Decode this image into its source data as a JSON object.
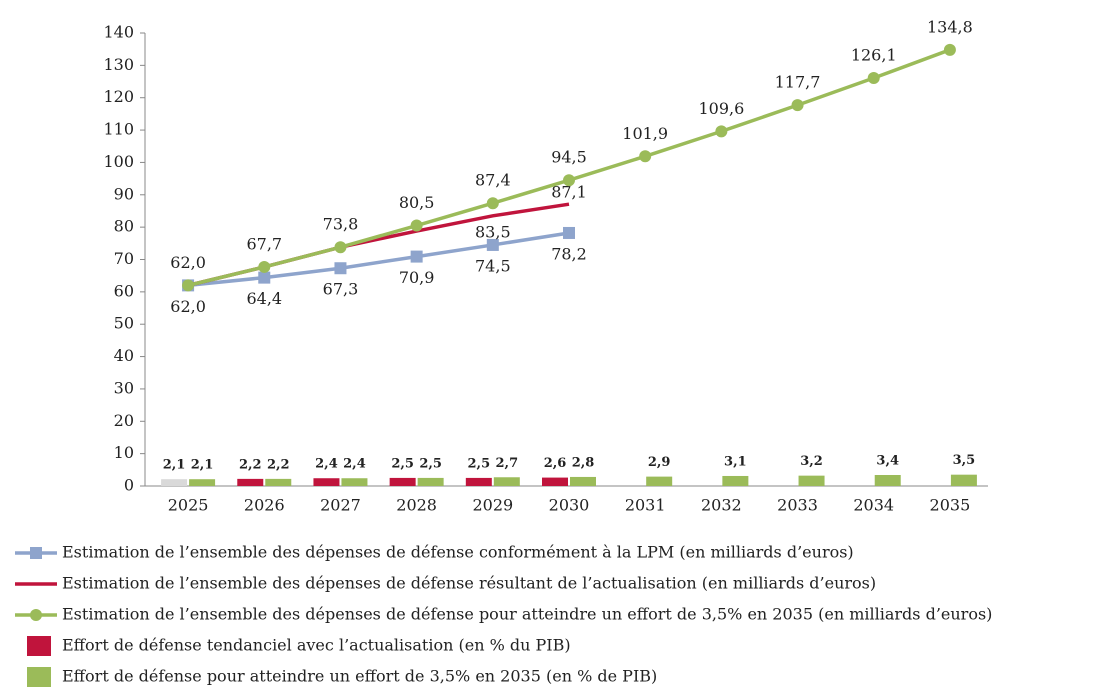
{
  "chart_data": {
    "type": "combo",
    "categories": [
      "2025",
      "2026",
      "2027",
      "2028",
      "2029",
      "2030",
      "2031",
      "2032",
      "2033",
      "2034",
      "2035"
    ],
    "ylim": [
      0,
      140
    ],
    "yticks": [
      0,
      10,
      20,
      30,
      40,
      50,
      60,
      70,
      80,
      90,
      100,
      110,
      120,
      130,
      140
    ],
    "series": [
      {
        "name": "Estimation de l’ensemble des dépenses de défense conformément à la LPM (en milliards d’euros)",
        "kind": "line",
        "marker": "square",
        "color": "#8ea4cc",
        "values": [
          62.0,
          64.4,
          67.3,
          70.9,
          74.5,
          78.2,
          null,
          null,
          null,
          null,
          null
        ],
        "value_labels": [
          "62,0",
          "64,4",
          "67,3",
          "70,9",
          "74,5",
          "78,2",
          null,
          null,
          null,
          null,
          null
        ]
      },
      {
        "name": "Estimation de l’ensemble des dépenses de défense résultant de l’actualisation (en milliards d’euros)",
        "kind": "line",
        "marker": "none",
        "color": "#c0143c",
        "values": [
          62.0,
          67.7,
          73.8,
          78.8,
          83.5,
          87.1,
          null,
          null,
          null,
          null,
          null
        ],
        "value_labels": [
          null,
          null,
          null,
          null,
          "83,5",
          "87,1",
          null,
          null,
          null,
          null,
          null
        ]
      },
      {
        "name": "Estimation de l’ensemble des dépenses de défense pour atteindre un effort de 3,5% en 2035 (en milliards d’euros)",
        "kind": "line",
        "marker": "circle",
        "color": "#9bbb59",
        "values": [
          62.0,
          67.7,
          73.8,
          80.5,
          87.4,
          94.5,
          101.9,
          109.6,
          117.7,
          126.1,
          134.8
        ],
        "value_labels": [
          "62,0",
          "67,7",
          "73,8",
          "80,5",
          "87,4",
          "94,5",
          "101,9",
          "109,6",
          "117,7",
          "126,1",
          "134,8"
        ]
      },
      {
        "name": "Effort de défense tendanciel avec l’actualisation (en % du PIB)",
        "kind": "bar",
        "color": "#c0143c",
        "colors": [
          "#d9d9d9",
          "#c0143c",
          "#c0143c",
          "#c0143c",
          "#c0143c",
          "#c0143c",
          null,
          null,
          null,
          null,
          null
        ],
        "values": [
          2.1,
          2.2,
          2.4,
          2.5,
          2.5,
          2.6,
          null,
          null,
          null,
          null,
          null
        ],
        "value_labels": [
          "2,1",
          "2,2",
          "2,4",
          "2,5",
          "2,5",
          "2,6",
          null,
          null,
          null,
          null,
          null
        ]
      },
      {
        "name": "Effort de défense pour atteindre un effort de 3,5% en 2035 (en % de PIB)",
        "kind": "bar",
        "color": "#9bbb59",
        "values": [
          2.1,
          2.2,
          2.4,
          2.5,
          2.7,
          2.8,
          2.9,
          3.1,
          3.2,
          3.4,
          3.5
        ],
        "value_labels": [
          "2,1",
          "2,2",
          "2,4",
          "2,5",
          "2,7",
          "2,8",
          "2,9",
          "3,1",
          "3,2",
          "3,4",
          "3,5"
        ]
      }
    ]
  }
}
